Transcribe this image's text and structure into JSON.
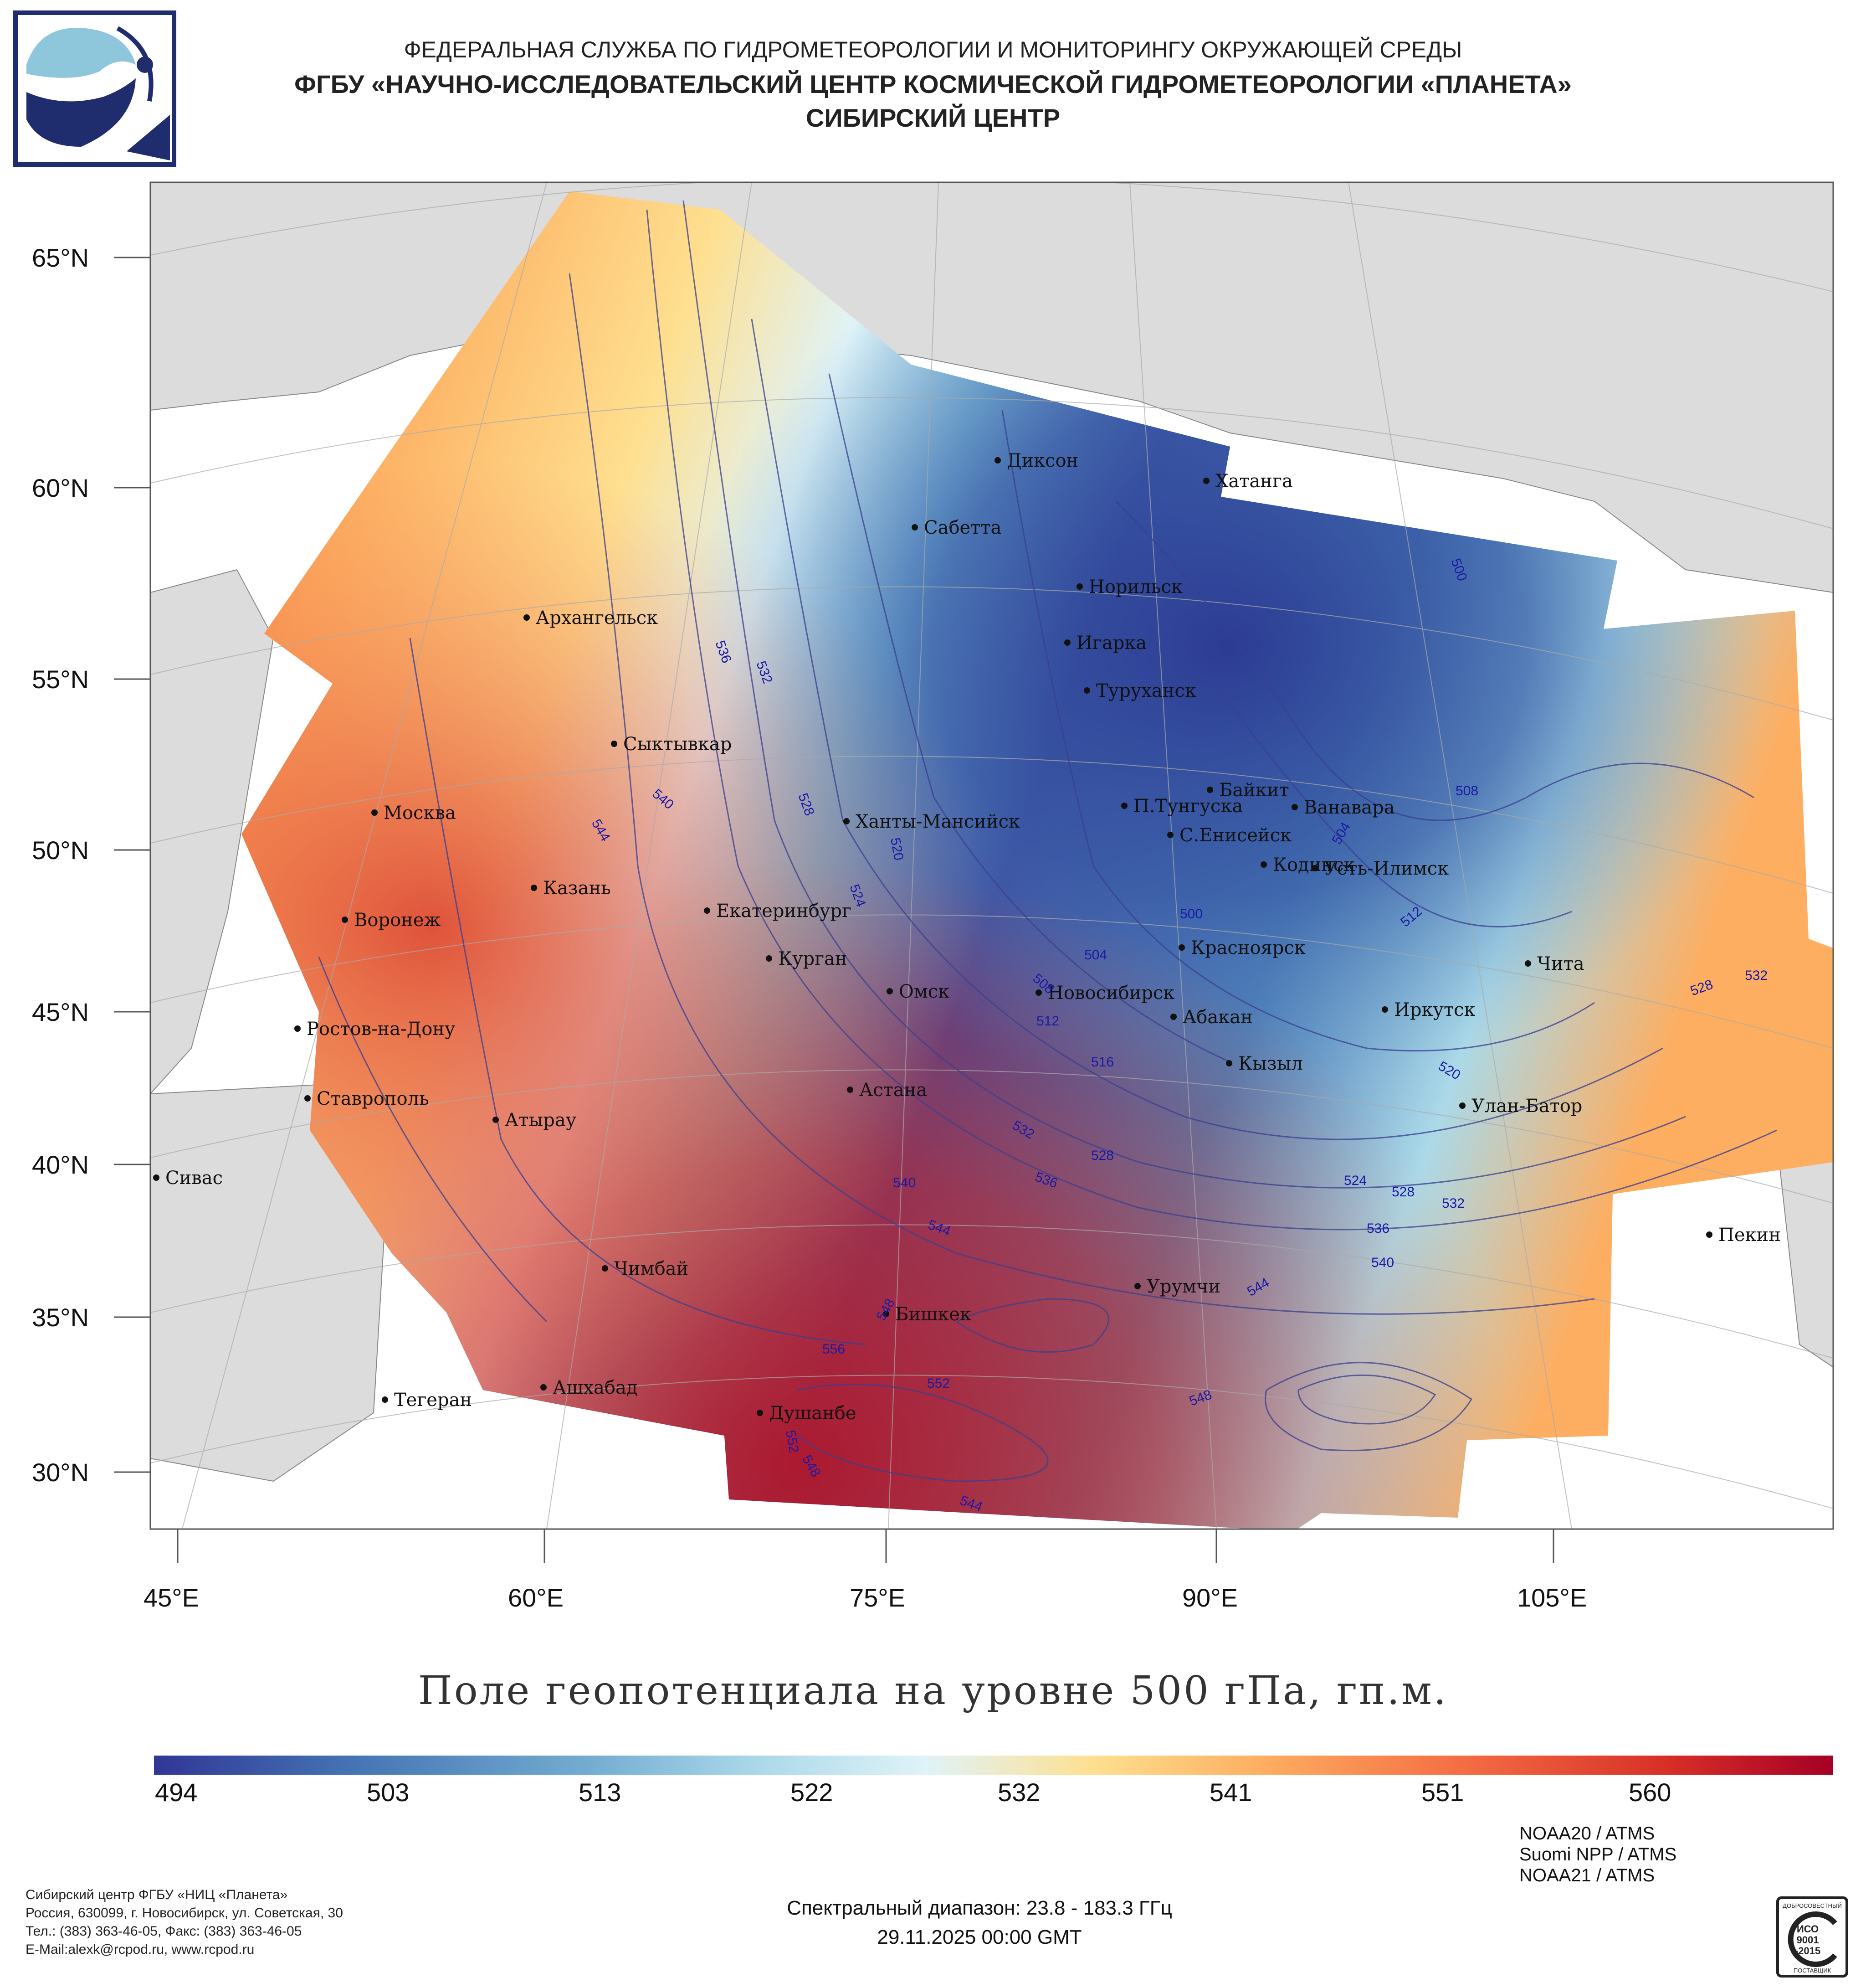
{
  "header": {
    "line1": "ФЕДЕРАЛЬНАЯ СЛУЖБА ПО ГИДРОМЕТЕОРОЛОГИИ И МОНИТОРИНГУ ОКРУЖАЮЩЕЙ СРЕДЫ",
    "line2": "ФГБУ «НАУЧНО-ИССЛЕДОВАТЕЛЬСКИЙ ЦЕНТР КОСМИЧЕСКОЙ ГИДРОМЕТЕОРОЛОГИИ «ПЛАНЕТА»",
    "line3": "СИБИРСКИЙ ЦЕНТР"
  },
  "map": {
    "lat_labels": [
      "65°N",
      "60°N",
      "55°N",
      "50°N",
      "45°N",
      "40°N",
      "35°N",
      "30°N"
    ],
    "lon_labels": [
      "45°E",
      "60°E",
      "75°E",
      "90°E",
      "105°E"
    ],
    "cities": [
      "Диксон",
      "Хатанга",
      "Сабетта",
      "Норильск",
      "Архангельск",
      "Игарка",
      "Туруханск",
      "Сыктывкар",
      "Байкит",
      "П.Тунгуска",
      "Ванавара",
      "Москва",
      "Ханты-Мансийск",
      "С.Енисейск",
      "Казань",
      "Кодинск",
      "Усть-Илимск",
      "Екатеринбург",
      "Воронеж",
      "Красноярск",
      "Курган",
      "Чита",
      "Новосибирск",
      "Омск",
      "Иркутск",
      "Ростов-на-Дону",
      "Абакан",
      "Кызыл",
      "Ставрополь",
      "Астана",
      "Улан-Батор",
      "Атырау",
      "Сивас",
      "Пекин",
      "Чимбай",
      "Урумчи",
      "Бишкек",
      "Ашхабад",
      "Тегеран",
      "Душанбе"
    ],
    "contour_labels": [
      "500",
      "536",
      "532",
      "508",
      "528",
      "540",
      "544",
      "520",
      "504",
      "512",
      "524",
      "516",
      "532",
      "528",
      "524",
      "548",
      "556",
      "552",
      "544"
    ],
    "land_color": "#dcdcdc",
    "sea_color": "#ffffff"
  },
  "title": "Поле геопотенциала на уровне 500 гПа, гп.м.",
  "colorbar": {
    "ticks": [
      "494",
      "503",
      "513",
      "522",
      "532",
      "541",
      "551",
      "560"
    ]
  },
  "footer": {
    "org": "Сибирский центр ФГБУ «НИЦ «Планета»",
    "address": "Россия, 630099, г. Новосибирск, ул. Советская, 30",
    "phone": "Тел.: (383) 363-46-05, Факс: (383) 363-46-05",
    "email": "E-Mail:alexk@rcpod.ru, www.rcpod.ru",
    "spectral": "Спектральный диапазон: 23.8 - 183.3 ГГц",
    "datetime": "29.11.2025 00:00 GMT",
    "sat1": "NOAA20 / ATMS",
    "sat2": "Suomi NPP / ATMS",
    "sat3": "NOAA21 / ATMS",
    "iso_top": "ДОБРОСОВЕСТНЫЙ",
    "iso_mid": "ИСО",
    "iso_num": "9001",
    "iso_year": "-2015",
    "iso_bottom": "ПОСТАВЩИК"
  }
}
